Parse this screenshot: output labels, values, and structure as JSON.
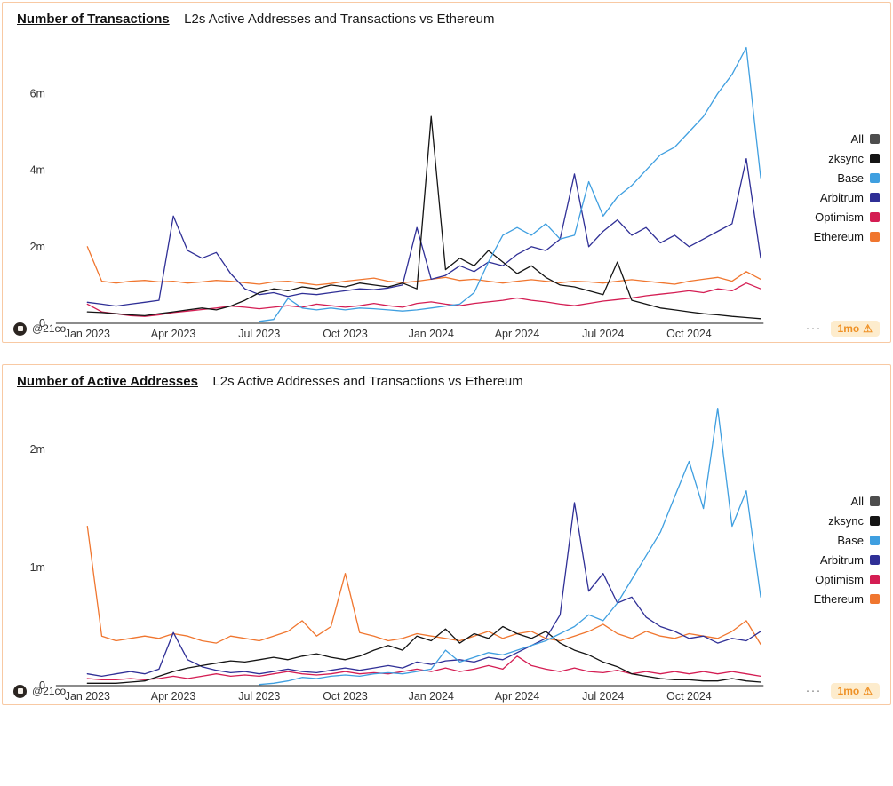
{
  "cards": [
    {
      "title": "Number of Transactions",
      "subtitle": "L2s Active Addresses and Transactions vs Ethereum",
      "footer": {
        "handle": "@21co",
        "menu": "···",
        "badge_label": "1mo",
        "warning_icon": "⚠"
      }
    },
    {
      "title": "Number of Active Addresses",
      "subtitle": "L2s Active Addresses and Transactions vs Ethereum",
      "footer": {
        "handle": "@21co",
        "menu": "···",
        "badge_label": "1mo",
        "warning_icon": "⚠"
      }
    }
  ],
  "legend": {
    "position": "right",
    "items": [
      {
        "label": "All",
        "color": "#4d4d4d"
      },
      {
        "label": "zksync",
        "color": "#141414"
      },
      {
        "label": "Base",
        "color": "#3f9fe0"
      },
      {
        "label": "Arbitrum",
        "color": "#2f2f96"
      },
      {
        "label": "Optimism",
        "color": "#d41d53"
      },
      {
        "label": "Ethereum",
        "color": "#f0762f"
      }
    ]
  },
  "colors": {
    "card_border": "#f8c9a3",
    "axis": "#1a1a1a",
    "tick_text": "#333333",
    "badge_bg": "#fdeccd",
    "badge_text": "#ef9126"
  },
  "chart_data": [
    {
      "type": "line",
      "title": "Number of Transactions",
      "subtitle": "L2s Active Addresses and Transactions vs Ethereum",
      "unit": "millions of transactions per day",
      "x_unit": "months since Jan 2023 (0 = Jan 2023)",
      "grid": false,
      "legend_position": "right",
      "xlim": [
        -1.1,
        23.6
      ],
      "ylim": [
        0,
        7.4
      ],
      "x_ticks": [
        {
          "x": 0,
          "label": "Jan 2023"
        },
        {
          "x": 3,
          "label": "Apr 2023"
        },
        {
          "x": 6,
          "label": "Jul 2023"
        },
        {
          "x": 9,
          "label": "Oct 2023"
        },
        {
          "x": 12,
          "label": "Jan 2024"
        },
        {
          "x": 15,
          "label": "Apr 2024"
        },
        {
          "x": 18,
          "label": "Jul 2024"
        },
        {
          "x": 21,
          "label": "Oct 2024"
        }
      ],
      "y_ticks": [
        {
          "y": 0,
          "label": "0"
        },
        {
          "y": 2,
          "label": "2m"
        },
        {
          "y": 4,
          "label": "4m"
        },
        {
          "y": 6,
          "label": "6m"
        }
      ],
      "x": [
        0,
        0.5,
        1,
        1.5,
        2,
        2.5,
        3,
        3.5,
        4,
        4.5,
        5,
        5.5,
        6,
        6.5,
        7,
        7.5,
        8,
        8.5,
        9,
        9.5,
        10,
        10.5,
        11,
        11.5,
        12,
        12.5,
        13,
        13.5,
        14,
        14.5,
        15,
        15.5,
        16,
        16.5,
        17,
        17.5,
        18,
        18.5,
        19,
        19.5,
        20,
        20.5,
        21,
        21.5,
        22,
        22.5,
        23,
        23.5
      ],
      "series": [
        {
          "name": "Ethereum",
          "color": "#f0762f",
          "values": [
            2.0,
            1.1,
            1.05,
            1.1,
            1.12,
            1.08,
            1.1,
            1.05,
            1.08,
            1.12,
            1.1,
            1.06,
            1.02,
            1.08,
            1.1,
            1.05,
            1.0,
            1.04,
            1.1,
            1.14,
            1.18,
            1.1,
            1.06,
            1.1,
            1.15,
            1.2,
            1.12,
            1.15,
            1.1,
            1.05,
            1.1,
            1.14,
            1.1,
            1.06,
            1.1,
            1.08,
            1.05,
            1.1,
            1.14,
            1.1,
            1.06,
            1.02,
            1.1,
            1.15,
            1.2,
            1.1,
            1.35,
            1.15
          ]
        },
        {
          "name": "Optimism",
          "color": "#d41d53",
          "values": [
            0.5,
            0.3,
            0.25,
            0.2,
            0.18,
            0.22,
            0.28,
            0.32,
            0.36,
            0.4,
            0.45,
            0.42,
            0.38,
            0.42,
            0.46,
            0.42,
            0.5,
            0.46,
            0.42,
            0.46,
            0.52,
            0.46,
            0.42,
            0.52,
            0.56,
            0.5,
            0.46,
            0.52,
            0.56,
            0.6,
            0.66,
            0.6,
            0.56,
            0.5,
            0.46,
            0.52,
            0.58,
            0.62,
            0.66,
            0.72,
            0.76,
            0.8,
            0.85,
            0.8,
            0.9,
            0.85,
            1.05,
            0.9
          ]
        },
        {
          "name": "Arbitrum",
          "color": "#2f2f96",
          "values": [
            0.55,
            0.5,
            0.45,
            0.5,
            0.55,
            0.6,
            2.8,
            1.9,
            1.7,
            1.85,
            1.3,
            0.9,
            0.75,
            0.8,
            0.7,
            0.78,
            0.75,
            0.8,
            0.85,
            0.9,
            0.88,
            0.92,
            1.0,
            2.5,
            1.15,
            1.25,
            1.5,
            1.35,
            1.6,
            1.5,
            1.8,
            2.0,
            1.9,
            2.2,
            3.9,
            2.0,
            2.4,
            2.7,
            2.3,
            2.5,
            2.1,
            2.3,
            2.0,
            2.2,
            2.4,
            2.6,
            4.3,
            1.7
          ]
        },
        {
          "name": "zksync",
          "color": "#141414",
          "values": [
            0.3,
            0.28,
            0.25,
            0.22,
            0.2,
            0.25,
            0.3,
            0.35,
            0.4,
            0.35,
            0.45,
            0.6,
            0.8,
            0.9,
            0.85,
            0.95,
            0.9,
            1.0,
            0.95,
            1.05,
            1.0,
            0.95,
            1.05,
            0.9,
            5.4,
            1.4,
            1.7,
            1.5,
            1.9,
            1.6,
            1.3,
            1.5,
            1.2,
            1.0,
            0.95,
            0.85,
            0.75,
            1.6,
            0.6,
            0.5,
            0.4,
            0.35,
            0.3,
            0.25,
            0.22,
            0.18,
            0.15,
            0.12
          ]
        },
        {
          "name": "Base",
          "color": "#3f9fe0",
          "values": [
            0,
            0,
            0,
            0,
            0,
            0,
            0,
            0,
            0,
            0,
            0,
            0,
            0.05,
            0.1,
            0.65,
            0.4,
            0.35,
            0.4,
            0.35,
            0.4,
            0.38,
            0.35,
            0.32,
            0.35,
            0.4,
            0.45,
            0.5,
            0.8,
            1.6,
            2.3,
            2.5,
            2.3,
            2.6,
            2.2,
            2.3,
            3.7,
            2.8,
            3.3,
            3.6,
            4.0,
            4.4,
            4.6,
            5.0,
            5.4,
            6.0,
            6.5,
            7.2,
            3.8
          ]
        }
      ]
    },
    {
      "type": "line",
      "title": "Number of Active Addresses",
      "subtitle": "L2s Active Addresses and Transactions vs Ethereum",
      "unit": "millions of active addresses per day",
      "x_unit": "months since Jan 2023 (0 = Jan 2023)",
      "grid": false,
      "legend_position": "right",
      "xlim": [
        -1.1,
        23.6
      ],
      "ylim": [
        0,
        2.4
      ],
      "x_ticks": [
        {
          "x": 0,
          "label": "Jan 2023"
        },
        {
          "x": 3,
          "label": "Apr 2023"
        },
        {
          "x": 6,
          "label": "Jul 2023"
        },
        {
          "x": 9,
          "label": "Oct 2023"
        },
        {
          "x": 12,
          "label": "Jan 2024"
        },
        {
          "x": 15,
          "label": "Apr 2024"
        },
        {
          "x": 18,
          "label": "Jul 2024"
        },
        {
          "x": 21,
          "label": "Oct 2024"
        }
      ],
      "y_ticks": [
        {
          "y": 0,
          "label": "0"
        },
        {
          "y": 1,
          "label": "1m"
        },
        {
          "y": 2,
          "label": "2m"
        }
      ],
      "x": [
        0,
        0.5,
        1,
        1.5,
        2,
        2.5,
        3,
        3.5,
        4,
        4.5,
        5,
        5.5,
        6,
        6.5,
        7,
        7.5,
        8,
        8.5,
        9,
        9.5,
        10,
        10.5,
        11,
        11.5,
        12,
        12.5,
        13,
        13.5,
        14,
        14.5,
        15,
        15.5,
        16,
        16.5,
        17,
        17.5,
        18,
        18.5,
        19,
        19.5,
        20,
        20.5,
        21,
        21.5,
        22,
        22.5,
        23,
        23.5
      ],
      "series": [
        {
          "name": "Ethereum",
          "color": "#f0762f",
          "values": [
            1.35,
            0.42,
            0.38,
            0.4,
            0.42,
            0.4,
            0.44,
            0.42,
            0.38,
            0.36,
            0.42,
            0.4,
            0.38,
            0.42,
            0.46,
            0.55,
            0.42,
            0.5,
            0.95,
            0.45,
            0.42,
            0.38,
            0.4,
            0.44,
            0.42,
            0.4,
            0.38,
            0.42,
            0.46,
            0.4,
            0.44,
            0.46,
            0.4,
            0.38,
            0.42,
            0.46,
            0.52,
            0.44,
            0.4,
            0.46,
            0.42,
            0.4,
            0.44,
            0.42,
            0.4,
            0.46,
            0.55,
            0.35
          ]
        },
        {
          "name": "Optimism",
          "color": "#d41d53",
          "values": [
            0.06,
            0.05,
            0.05,
            0.06,
            0.05,
            0.06,
            0.08,
            0.06,
            0.08,
            0.1,
            0.08,
            0.09,
            0.08,
            0.1,
            0.12,
            0.1,
            0.09,
            0.1,
            0.12,
            0.1,
            0.11,
            0.1,
            0.12,
            0.14,
            0.12,
            0.15,
            0.12,
            0.14,
            0.17,
            0.14,
            0.25,
            0.17,
            0.14,
            0.12,
            0.15,
            0.12,
            0.11,
            0.13,
            0.1,
            0.12,
            0.1,
            0.12,
            0.1,
            0.12,
            0.1,
            0.12,
            0.1,
            0.08
          ]
        },
        {
          "name": "Arbitrum",
          "color": "#2f2f96",
          "values": [
            0.1,
            0.08,
            0.1,
            0.12,
            0.1,
            0.14,
            0.45,
            0.22,
            0.16,
            0.13,
            0.11,
            0.12,
            0.1,
            0.12,
            0.14,
            0.12,
            0.11,
            0.13,
            0.15,
            0.13,
            0.15,
            0.17,
            0.15,
            0.2,
            0.18,
            0.21,
            0.22,
            0.2,
            0.24,
            0.22,
            0.28,
            0.34,
            0.4,
            0.6,
            1.55,
            0.8,
            0.95,
            0.7,
            0.75,
            0.58,
            0.5,
            0.46,
            0.4,
            0.42,
            0.36,
            0.4,
            0.38,
            0.46
          ]
        },
        {
          "name": "zksync",
          "color": "#141414",
          "values": [
            0.02,
            0.02,
            0.02,
            0.03,
            0.04,
            0.08,
            0.12,
            0.15,
            0.17,
            0.19,
            0.21,
            0.2,
            0.22,
            0.24,
            0.22,
            0.25,
            0.27,
            0.24,
            0.22,
            0.25,
            0.3,
            0.34,
            0.3,
            0.42,
            0.38,
            0.48,
            0.36,
            0.44,
            0.4,
            0.5,
            0.44,
            0.4,
            0.46,
            0.36,
            0.3,
            0.26,
            0.2,
            0.16,
            0.1,
            0.08,
            0.06,
            0.05,
            0.05,
            0.04,
            0.04,
            0.06,
            0.04,
            0.03
          ]
        },
        {
          "name": "Base",
          "color": "#3f9fe0",
          "values": [
            0,
            0,
            0,
            0,
            0,
            0,
            0,
            0,
            0,
            0,
            0,
            0,
            0.01,
            0.02,
            0.04,
            0.07,
            0.06,
            0.08,
            0.09,
            0.08,
            0.1,
            0.11,
            0.1,
            0.12,
            0.14,
            0.3,
            0.2,
            0.24,
            0.28,
            0.26,
            0.3,
            0.34,
            0.38,
            0.44,
            0.5,
            0.6,
            0.55,
            0.7,
            0.9,
            1.1,
            1.3,
            1.6,
            1.9,
            1.5,
            2.35,
            1.35,
            1.65,
            0.75
          ]
        }
      ]
    }
  ]
}
